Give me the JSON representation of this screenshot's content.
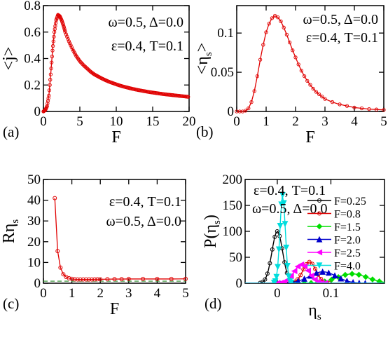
{
  "chart_data": [
    {
      "panel_label": "(a)",
      "type": "line",
      "xlabel": "F",
      "ylabel": "<j>",
      "xlim": [
        0,
        20
      ],
      "ylim": [
        0,
        0.8
      ],
      "xticks": [
        "0",
        "5",
        "10",
        "15",
        "20"
      ],
      "yticks": [
        "0",
        "0.2",
        "0.4",
        "0.6",
        "0.8"
      ],
      "annotations": [
        "ω=0.5, Δ=0.0",
        "ε=0.4, T=0.1"
      ],
      "color": "#e00000",
      "series": [
        {
          "x": [
            0,
            0.25,
            0.5,
            0.75,
            1.0,
            1.25,
            1.5,
            1.75,
            2.0,
            2.25,
            2.5,
            2.75,
            3.0,
            3.5,
            4,
            4.5,
            5,
            5.5,
            6,
            6.5,
            7,
            7.5,
            8,
            8.5,
            9,
            9.5,
            10,
            10.5,
            11,
            11.5,
            12,
            12.5,
            13,
            13.5,
            14,
            14.5,
            15,
            15.5,
            16,
            16.5,
            17,
            17.5,
            18,
            18.5,
            19,
            19.5,
            20
          ],
          "y": [
            0,
            0.01,
            0.04,
            0.12,
            0.28,
            0.46,
            0.6,
            0.69,
            0.73,
            0.72,
            0.69,
            0.65,
            0.6,
            0.53,
            0.47,
            0.42,
            0.38,
            0.35,
            0.325,
            0.3,
            0.28,
            0.265,
            0.25,
            0.237,
            0.225,
            0.215,
            0.205,
            0.196,
            0.188,
            0.181,
            0.174,
            0.168,
            0.162,
            0.157,
            0.152,
            0.147,
            0.143,
            0.139,
            0.135,
            0.131,
            0.128,
            0.125,
            0.122,
            0.119,
            0.116,
            0.113,
            0.11
          ]
        }
      ]
    },
    {
      "panel_label": "(b)",
      "type": "line",
      "xlabel": "F",
      "ylabel": "<ηs>",
      "xlim": [
        0,
        5
      ],
      "ylim": [
        0,
        0.135
      ],
      "xticks": [
        "0",
        "1",
        "2",
        "3",
        "4",
        "5"
      ],
      "yticks": [
        "0",
        "0.05",
        "0.1"
      ],
      "annotations": [
        "ω=0.5, Δ=0.0",
        "ε=0.4, T=0.1"
      ],
      "color": "#e00000",
      "series": [
        {
          "x": [
            0,
            0.1,
            0.2,
            0.3,
            0.4,
            0.5,
            0.6,
            0.7,
            0.8,
            0.9,
            1.0,
            1.1,
            1.2,
            1.3,
            1.4,
            1.5,
            1.6,
            1.7,
            1.8,
            1.9,
            2.0,
            2.1,
            2.2,
            2.3,
            2.4,
            2.5,
            2.6,
            2.7,
            2.8,
            2.9,
            3.0,
            3.25,
            3.5,
            3.75,
            4.0,
            4.25,
            4.5,
            4.75,
            5.0
          ],
          "y": [
            0,
            0,
            0,
            0.001,
            0.004,
            0.012,
            0.026,
            0.045,
            0.066,
            0.085,
            0.101,
            0.112,
            0.119,
            0.122,
            0.12,
            0.115,
            0.107,
            0.098,
            0.088,
            0.078,
            0.069,
            0.06,
            0.052,
            0.045,
            0.039,
            0.034,
            0.029,
            0.025,
            0.022,
            0.019,
            0.016,
            0.012,
            0.009,
            0.007,
            0.005,
            0.004,
            0.003,
            0.0025,
            0.002
          ]
        }
      ]
    },
    {
      "panel_label": "(c)",
      "type": "line",
      "xlabel": "F",
      "ylabel": "Rηs",
      "xlim": [
        0,
        5
      ],
      "ylim": [
        0,
        50
      ],
      "xticks": [
        "0",
        "1",
        "2",
        "3",
        "4",
        "5"
      ],
      "yticks": [
        "0",
        "10",
        "20",
        "30",
        "40",
        "50"
      ],
      "annotations": [
        "ε=0.4, T=0.1",
        "ω=0.5, Δ=0.0"
      ],
      "color": "#e00000",
      "reference_line_y": 1,
      "series": [
        {
          "x": [
            0.4,
            0.5,
            0.6,
            0.7,
            0.8,
            0.9,
            1.0,
            1.1,
            1.2,
            1.3,
            1.4,
            1.5,
            1.6,
            1.7,
            1.8,
            1.9,
            2.0,
            2.25,
            2.5,
            2.75,
            3.0,
            3.5,
            4.0,
            4.5,
            5.0
          ],
          "y": [
            41,
            15.5,
            7.5,
            4.3,
            3.0,
            2.4,
            2.1,
            1.9,
            1.8,
            1.8,
            1.8,
            1.8,
            1.8,
            1.8,
            1.85,
            1.9,
            1.9,
            1.95,
            2.0,
            2.0,
            2.05,
            2.05,
            2.05,
            2.05,
            2.1
          ]
        }
      ]
    },
    {
      "panel_label": "(d)",
      "type": "line",
      "xlabel": "ηs",
      "ylabel": "P(ηs)",
      "xlim": [
        -0.06,
        0.2
      ],
      "ylim": [
        0,
        200
      ],
      "xticks": [
        "0",
        "0.1"
      ],
      "xtick_values": [
        0,
        0.1
      ],
      "yticks": [
        "0",
        "50",
        "100",
        "150",
        "200"
      ],
      "annotations": [
        "ε=0.4, T=0.1",
        "ω=0.5, Δ=0.0"
      ],
      "legend_position": "top-right",
      "series": [
        {
          "name": "F=0.25",
          "color": "#000000",
          "marker": "circle",
          "peak_x": 0.0,
          "peak_y": 100,
          "width": 0.01
        },
        {
          "name": "F=0.8",
          "color": "#e00000",
          "marker": "circle",
          "peak_x": 0.06,
          "peak_y": 41,
          "width": 0.012
        },
        {
          "name": "F=1.5",
          "color": "#00dd00",
          "marker": "diamond",
          "peak_x": 0.14,
          "peak_y": 18,
          "width": 0.028
        },
        {
          "name": "F=2.0",
          "color": "#0000cc",
          "marker": "triangle-up",
          "peak_x": 0.085,
          "peak_y": 22,
          "width": 0.025
        },
        {
          "name": "F=2.5",
          "color": "#ff00ff",
          "marker": "triangle-left",
          "peak_x": 0.045,
          "peak_y": 36,
          "width": 0.014
        },
        {
          "name": "F=4.0",
          "color": "#00dddd",
          "marker": "triangle-down",
          "peak_x": 0.01,
          "peak_y": 170,
          "width": 0.005
        }
      ]
    }
  ]
}
